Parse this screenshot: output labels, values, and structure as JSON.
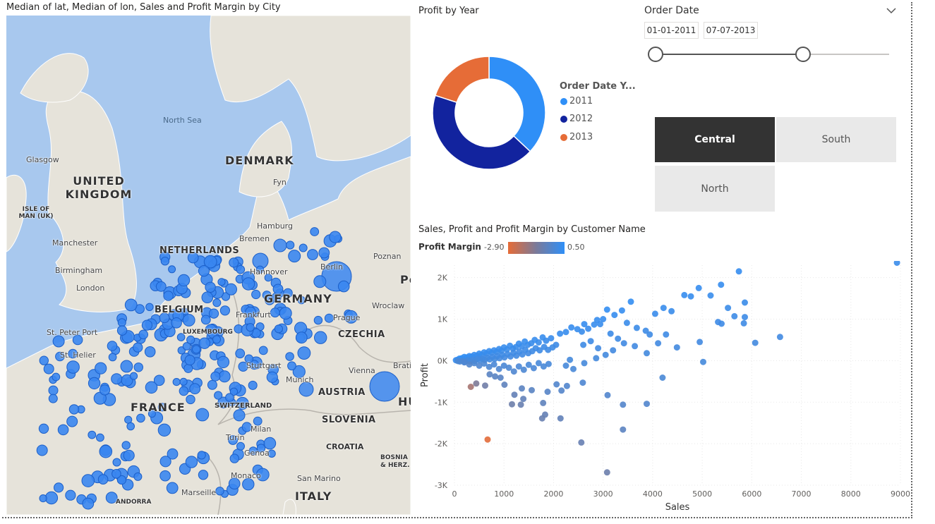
{
  "map": {
    "title": "Median of lat, Median of lon, Sales and Profit Margin by City",
    "countries": [
      "UNITED KINGDOM",
      "DENMARK",
      "NETHERLANDS",
      "GERMANY",
      "BELGIUM",
      "LUXEMBOURG",
      "CZECHIA",
      "FRANCE",
      "SWITZERLAND",
      "AUSTRIA",
      "SLOVENIA",
      "CROATIA",
      "ITALY",
      "ANDORRA",
      "ISLE OF MAN (UK)",
      "BOSNIA & HERZ."
    ],
    "cities": [
      "Glasgow",
      "Manchester",
      "Birmingham",
      "London",
      "St. Peter Port",
      "St. Helier",
      "Hamburg",
      "Bremen",
      "Hannover",
      "Berlin",
      "Poznan",
      "Frankfurt",
      "Prague",
      "Wroclaw",
      "Stuttgart",
      "Munich",
      "Vienna",
      "Bratislava",
      "Milan",
      "Turin",
      "Genoa",
      "Monaco",
      "San Marino",
      "Marseille",
      "Fyn"
    ],
    "seas": [
      "North Sea"
    ],
    "edge_labels": [
      "Po",
      "HU"
    ],
    "bubble_color": "#3a86f0"
  },
  "donut": {
    "title": "Profit by Year",
    "legend_title": "Order Date Y...",
    "slices": [
      {
        "label": "2011",
        "value": 37,
        "color": "#2f8ff7"
      },
      {
        "label": "2012",
        "value": 43,
        "color": "#12239e"
      },
      {
        "label": "2013",
        "value": 20,
        "color": "#e66c37"
      }
    ]
  },
  "slicer": {
    "title": "Order Date",
    "start": "01-01-2011",
    "end": "07-07-2013",
    "collapse_icon": "chevron-down-icon"
  },
  "regions": {
    "buttons": [
      {
        "label": "Central",
        "selected": true
      },
      {
        "label": "South",
        "selected": false
      },
      {
        "label": "North",
        "selected": false
      }
    ]
  },
  "scatter": {
    "title": "Sales, Profit and Profit Margin by Customer Name",
    "legend_label": "Profit Margin",
    "legend_min": "-2.90",
    "legend_max": "0.50",
    "gradient_low": "#e66c37",
    "gradient_high": "#2f8ff7",
    "xlabel": "Sales",
    "ylabel": "Profit"
  },
  "chart_data": {
    "type": "scatter",
    "title": "Sales, Profit and Profit Margin by Customer Name",
    "xlabel": "Sales",
    "ylabel": "Profit",
    "xlim": [
      0,
      9000
    ],
    "ylim": [
      -3000,
      2300
    ],
    "x_ticks": [
      "0",
      "1000",
      "2000",
      "3000",
      "4000",
      "5000",
      "6000",
      "7000",
      "8000",
      "9000"
    ],
    "y_ticks": [
      "2K",
      "1K",
      "0K",
      "-1K",
      "-2K",
      "-3K"
    ],
    "grid": true,
    "points": [
      [
        8930,
        2360,
        0.26
      ],
      [
        5740,
        2150,
        0.37
      ],
      [
        5380,
        1830,
        0.34
      ],
      [
        5170,
        1570,
        0.3
      ],
      [
        4640,
        1580,
        0.34
      ],
      [
        4770,
        1550,
        0.32
      ],
      [
        4930,
        1750,
        0.35
      ],
      [
        5860,
        1400,
        0.24
      ],
      [
        5860,
        1050,
        0.18
      ],
      [
        5840,
        900,
        0.15
      ],
      [
        6070,
        430,
        0.07
      ],
      [
        6570,
        570,
        0.09
      ],
      [
        5520,
        1270,
        0.23
      ],
      [
        5320,
        930,
        0.17
      ],
      [
        5390,
        890,
        0.17
      ],
      [
        5650,
        1070,
        0.19
      ],
      [
        4220,
        1270,
        0.3
      ],
      [
        4380,
        1190,
        0.27
      ],
      [
        4050,
        1130,
        0.28
      ],
      [
        3560,
        1420,
        0.4
      ],
      [
        3380,
        1210,
        0.36
      ],
      [
        3230,
        1100,
        0.34
      ],
      [
        3480,
        910,
        0.26
      ],
      [
        3680,
        790,
        0.22
      ],
      [
        3860,
        720,
        0.19
      ],
      [
        3940,
        630,
        0.16
      ],
      [
        4110,
        420,
        0.1
      ],
      [
        4270,
        630,
        0.15
      ],
      [
        4490,
        320,
        0.07
      ],
      [
        4950,
        450,
        0.09
      ],
      [
        5020,
        -30,
        -0.01
      ],
      [
        4200,
        -410,
        -0.1
      ],
      [
        3080,
        1230,
        0.4
      ],
      [
        3000,
        1000,
        0.33
      ],
      [
        2940,
        880,
        0.3
      ],
      [
        2880,
        980,
        0.34
      ],
      [
        2820,
        870,
        0.31
      ],
      [
        2700,
        770,
        0.29
      ],
      [
        2620,
        880,
        0.34
      ],
      [
        2570,
        700,
        0.27
      ],
      [
        2480,
        760,
        0.31
      ],
      [
        2360,
        800,
        0.34
      ],
      [
        2250,
        690,
        0.31
      ],
      [
        2130,
        650,
        0.31
      ],
      [
        3150,
        650,
        0.21
      ],
      [
        3300,
        530,
        0.16
      ],
      [
        3420,
        420,
        0.12
      ],
      [
        3640,
        350,
        0.1
      ],
      [
        3880,
        180,
        0.05
      ],
      [
        3200,
        250,
        0.08
      ],
      [
        3050,
        140,
        0.05
      ],
      [
        2860,
        60,
        0.02
      ],
      [
        2620,
        -60,
        -0.02
      ],
      [
        2330,
        20,
        0.01
      ],
      [
        3880,
        -1040,
        -0.27
      ],
      [
        3400,
        -1060,
        -0.31
      ],
      [
        3400,
        -1660,
        -0.49
      ],
      [
        3090,
        -830,
        -0.27
      ],
      [
        3080,
        -2690,
        -0.87
      ],
      [
        2560,
        -1970,
        -0.77
      ],
      [
        2590,
        -530,
        -0.2
      ],
      [
        2270,
        -610,
        -0.27
      ],
      [
        2160,
        -720,
        -0.33
      ],
      [
        1880,
        -750,
        -0.4
      ],
      [
        1830,
        -1300,
        -0.71
      ],
      [
        1770,
        -1390,
        -0.79
      ],
      [
        2140,
        -1390,
        -0.65
      ],
      [
        1790,
        -1020,
        -0.57
      ],
      [
        1360,
        -670,
        -0.49
      ],
      [
        1560,
        -710,
        -0.46
      ],
      [
        1390,
        -920,
        -0.66
      ],
      [
        1340,
        -1060,
        -0.79
      ],
      [
        1160,
        -1050,
        -0.91
      ],
      [
        1210,
        -820,
        -0.68
      ],
      [
        1010,
        -580,
        -0.57
      ],
      [
        930,
        -410,
        -0.44
      ],
      [
        820,
        -380,
        -0.46
      ],
      [
        710,
        -330,
        -0.46
      ],
      [
        620,
        -600,
        -0.97
      ],
      [
        440,
        -550,
        -1.25
      ],
      [
        330,
        -630,
        -1.9
      ],
      [
        670,
        -1900,
        -2.84
      ],
      [
        2060,
        -570,
        -0.28
      ],
      [
        1950,
        540,
        0.28
      ],
      [
        1850,
        480,
        0.26
      ],
      [
        1780,
        560,
        0.31
      ],
      [
        1700,
        440,
        0.26
      ],
      [
        1620,
        500,
        0.31
      ],
      [
        1550,
        420,
        0.27
      ],
      [
        1480,
        380,
        0.26
      ],
      [
        1420,
        460,
        0.32
      ],
      [
        1360,
        350,
        0.26
      ],
      [
        1300,
        410,
        0.32
      ],
      [
        1240,
        330,
        0.27
      ],
      [
        1180,
        290,
        0.25
      ],
      [
        1120,
        360,
        0.32
      ],
      [
        1060,
        270,
        0.25
      ],
      [
        1000,
        320,
        0.32
      ],
      [
        950,
        240,
        0.25
      ],
      [
        900,
        280,
        0.31
      ],
      [
        850,
        210,
        0.25
      ],
      [
        800,
        250,
        0.31
      ],
      [
        750,
        190,
        0.25
      ],
      [
        700,
        230,
        0.33
      ],
      [
        650,
        170,
        0.26
      ],
      [
        600,
        200,
        0.33
      ],
      [
        550,
        140,
        0.25
      ],
      [
        500,
        170,
        0.34
      ],
      [
        450,
        120,
        0.27
      ],
      [
        400,
        140,
        0.35
      ],
      [
        350,
        100,
        0.29
      ],
      [
        300,
        110,
        0.37
      ],
      [
        250,
        80,
        0.32
      ],
      [
        200,
        90,
        0.45
      ],
      [
        150,
        60,
        0.4
      ],
      [
        100,
        50,
        0.5
      ],
      [
        60,
        20,
        0.33
      ],
      [
        30,
        10,
        0.33
      ],
      [
        2050,
        380,
        0.19
      ],
      [
        1980,
        320,
        0.16
      ],
      [
        1890,
        260,
        0.14
      ],
      [
        1810,
        330,
        0.18
      ],
      [
        1720,
        250,
        0.15
      ],
      [
        1640,
        300,
        0.18
      ],
      [
        1570,
        230,
        0.15
      ],
      [
        1490,
        180,
        0.12
      ],
      [
        1430,
        260,
        0.18
      ],
      [
        1370,
        150,
        0.11
      ],
      [
        1310,
        220,
        0.17
      ],
      [
        1250,
        120,
        0.1
      ],
      [
        1190,
        190,
        0.16
      ],
      [
        1130,
        100,
        0.09
      ],
      [
        1070,
        160,
        0.15
      ],
      [
        1010,
        80,
        0.08
      ],
      [
        960,
        140,
        0.15
      ],
      [
        910,
        60,
        0.07
      ],
      [
        860,
        110,
        0.13
      ],
      [
        810,
        40,
        0.05
      ],
      [
        760,
        90,
        0.12
      ],
      [
        710,
        30,
        0.04
      ],
      [
        660,
        70,
        0.11
      ],
      [
        610,
        20,
        0.03
      ],
      [
        560,
        50,
        0.09
      ],
      [
        510,
        10,
        0.02
      ],
      [
        460,
        40,
        0.09
      ],
      [
        410,
        -10,
        -0.02
      ],
      [
        360,
        20,
        0.06
      ],
      [
        310,
        -20,
        -0.06
      ],
      [
        260,
        10,
        0.04
      ],
      [
        210,
        -30,
        -0.14
      ],
      [
        160,
        0,
        0
      ],
      [
        110,
        -20,
        -0.18
      ],
      [
        70,
        -10,
        -0.14
      ],
      [
        1900,
        -80,
        -0.04
      ],
      [
        1800,
        -140,
        -0.08
      ],
      [
        1700,
        -60,
        -0.04
      ],
      [
        1600,
        -180,
        -0.11
      ],
      [
        1500,
        -100,
        -0.07
      ],
      [
        1400,
        -220,
        -0.16
      ],
      [
        1300,
        -140,
        -0.11
      ],
      [
        1200,
        -260,
        -0.22
      ],
      [
        1100,
        -170,
        -0.15
      ],
      [
        1000,
        -120,
        -0.12
      ],
      [
        900,
        -200,
        -0.22
      ],
      [
        800,
        -90,
        -0.11
      ],
      [
        700,
        -150,
        -0.21
      ],
      [
        600,
        -70,
        -0.12
      ],
      [
        500,
        -120,
        -0.24
      ],
      [
        400,
        -60,
        -0.15
      ],
      [
        300,
        -90,
        -0.3
      ],
      [
        200,
        -40,
        -0.2
      ],
      [
        2400,
        -200,
        -0.08
      ],
      [
        2250,
        -120,
        -0.05
      ],
      [
        2600,
        380,
        0.15
      ],
      [
        2750,
        470,
        0.17
      ],
      [
        2900,
        300,
        0.1
      ]
    ]
  }
}
